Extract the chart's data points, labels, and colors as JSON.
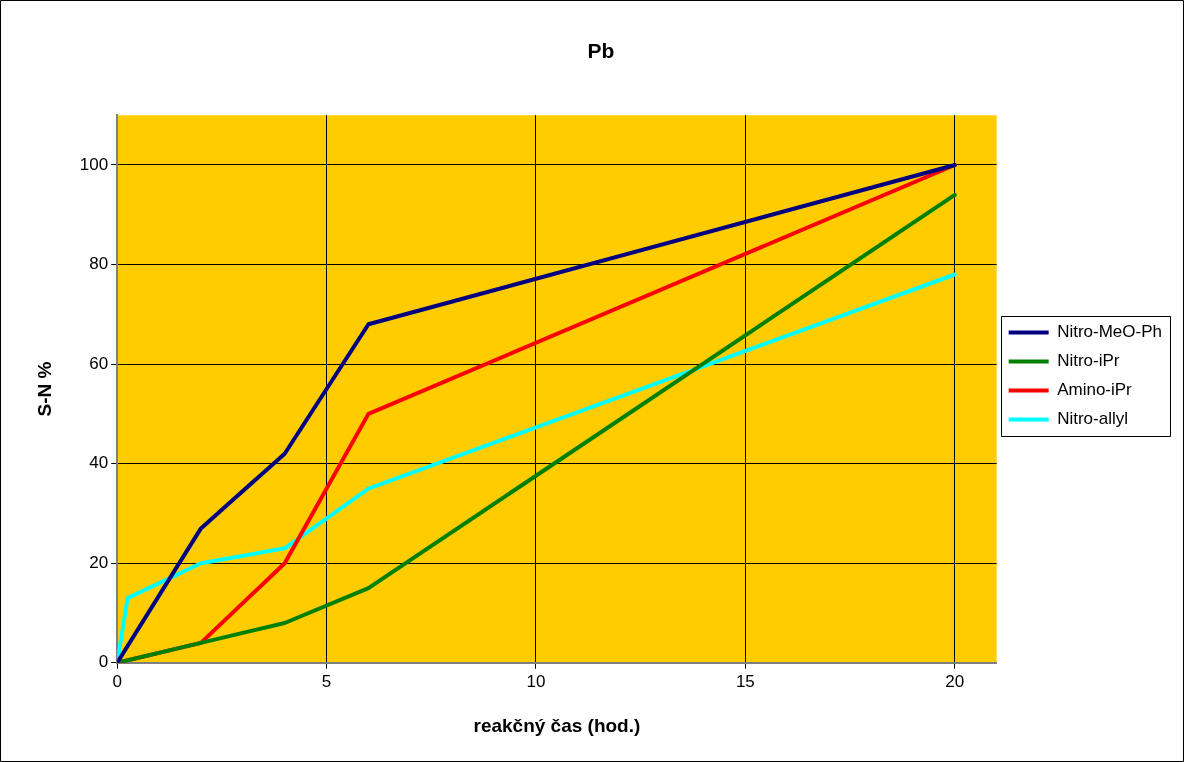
{
  "chart_data": {
    "type": "line",
    "title": "Pb",
    "xlabel": "reakčný čas (hod.)",
    "ylabel": "S-N %",
    "xlim": [
      0,
      21
    ],
    "xticks": [
      0,
      5,
      10,
      15,
      20
    ],
    "ylim": [
      0,
      110
    ],
    "yticks": [
      0,
      20,
      40,
      60,
      80,
      100
    ],
    "grid": true,
    "legend": "right",
    "marker": "none",
    "line_style": "solid",
    "series": [
      {
        "name": "Nitro-MeO-Ph",
        "color": "#000080",
        "x": [
          0,
          2,
          4,
          6,
          20
        ],
        "values": [
          0,
          27,
          42,
          68,
          100
        ]
      },
      {
        "name": "Nitro-iPr",
        "color": "#008000",
        "x": [
          0,
          2,
          4,
          6,
          20
        ],
        "values": [
          0,
          4,
          8,
          15,
          94
        ]
      },
      {
        "name": "Amino-iPr",
        "color": "#ff0000",
        "x": [
          0,
          2,
          4,
          6,
          20
        ],
        "values": [
          0,
          4,
          20,
          50,
          100
        ]
      },
      {
        "name": "Nitro-allyl",
        "color": "#00ffff",
        "x": [
          0,
          0.25,
          2,
          4,
          6,
          20
        ],
        "values": [
          0,
          13,
          20,
          23,
          35,
          78
        ]
      }
    ]
  }
}
